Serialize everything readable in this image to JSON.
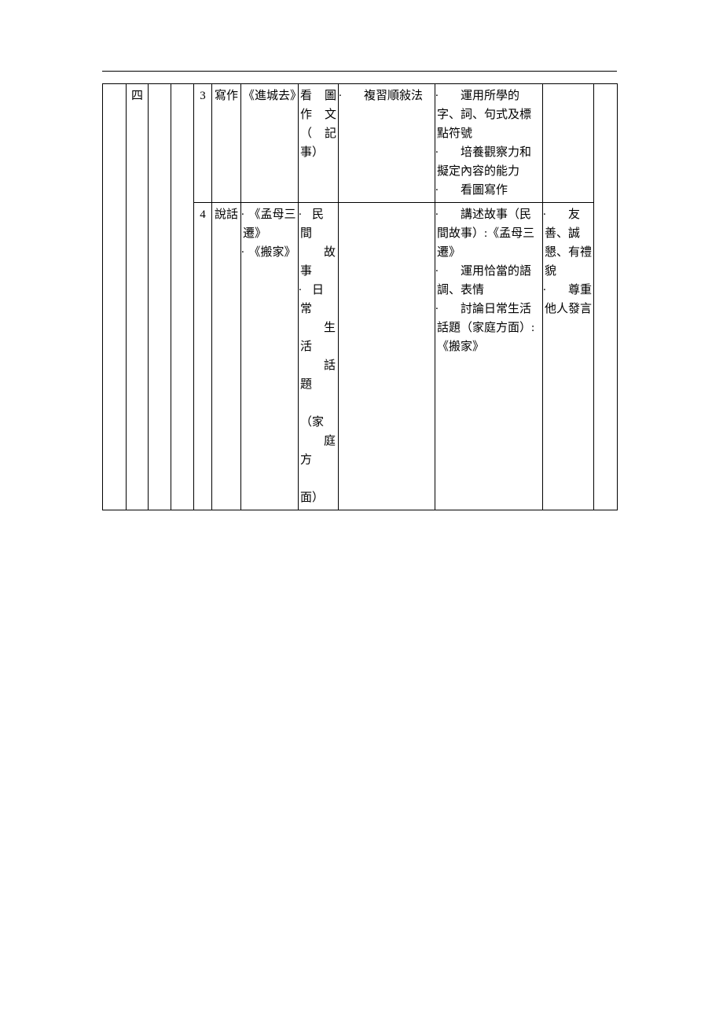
{
  "table": {
    "rows": [
      {
        "col1": "四",
        "col4": "3",
        "col5": "寫作",
        "col6_plain": "《進城去》",
        "col7_lines": [
          "看 圖",
          "作 文",
          "（ 記",
          "事）"
        ],
        "col8_items": [
          "複習順敍法"
        ],
        "col9_items_html": [
          "　　運用所學的字、詞、句式及標點符號",
          "　　培養觀察力和擬定內容的能力",
          "　　看圖寫作"
        ],
        "col10_items": []
      },
      {
        "col1": "",
        "col4": "4",
        "col5": "說話",
        "col6_items": [
          "《孟母三遷》",
          "《搬家》"
        ],
        "col7_groups": [
          {
            "label": "民間",
            "sub": "故事"
          },
          {
            "label": "日常",
            "sub": "生活",
            "sub2": "話題"
          },
          {
            "plain": "（家",
            "plain2": "庭方",
            "plain3": "面）"
          }
        ],
        "col8_items": [],
        "col9_items_html": [
          "　　講述故事（民間故事）:《孟母三遷》",
          "　　運用恰當的語調、表情",
          "　　討論日常生活話題（家庭方面）:《搬家》"
        ],
        "col10_items_html": [
          "　　友善、誠懇、有禮貌",
          "　　尊重他人發言"
        ]
      }
    ]
  },
  "colors": {
    "border": "#000000",
    "text": "#000000",
    "background": "#ffffff"
  },
  "fontsize_pt": 11
}
